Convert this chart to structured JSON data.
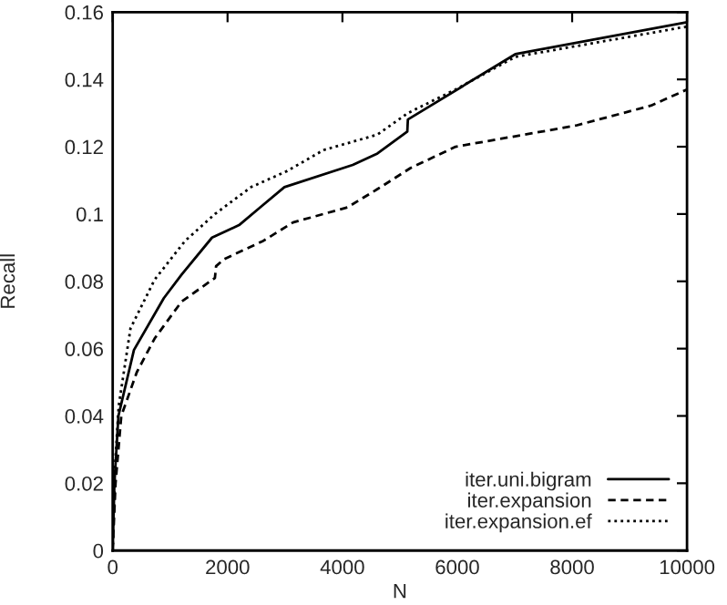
{
  "chart_data": {
    "type": "line",
    "xlabel": "N",
    "ylabel": "Recall",
    "xlim": [
      0,
      10000
    ],
    "xticks": [
      0,
      2000,
      4000,
      6000,
      8000,
      10000
    ],
    "ylim": [
      0,
      0.16
    ],
    "yticks": [
      0,
      0.02,
      0.04,
      0.06,
      0.08,
      0.1,
      0.12,
      0.14,
      0.16
    ],
    "grid": false,
    "legend": "bottom right",
    "marker": "none",
    "series": [
      {
        "name": "iter.uni.bigram",
        "color": "#000000",
        "line_style": "solid",
        "x": [
          0,
          30,
          100,
          370,
          890,
          1200,
          1730,
          2200,
          2570,
          2990,
          4180,
          4610,
          5130,
          5140,
          7010,
          10000
        ],
        "values": [
          0,
          0.02,
          0.04,
          0.0596,
          0.075,
          0.082,
          0.093,
          0.0967,
          0.102,
          0.108,
          0.1146,
          0.118,
          0.1245,
          0.1281,
          0.1475,
          0.157
        ]
      },
      {
        "name": "iter.expansion",
        "color": "#000000",
        "line_style": "dashed",
        "x": [
          0,
          50,
          150,
          420,
          730,
          1200,
          1780,
          1800,
          1940,
          2620,
          3140,
          4090,
          4610,
          5190,
          5970,
          8070,
          9370,
          10000
        ],
        "values": [
          0,
          0.02,
          0.04,
          0.053,
          0.063,
          0.074,
          0.081,
          0.0845,
          0.0866,
          0.092,
          0.0975,
          0.102,
          0.1074,
          0.1137,
          0.12,
          0.1263,
          0.1322,
          0.137
        ]
      },
      {
        "name": "iter.expansion.ef",
        "color": "#000000",
        "line_style": "dotted",
        "x": [
          0,
          40,
          105,
          310,
          730,
          1260,
          1780,
          2410,
          3040,
          3670,
          4610,
          5140,
          5970,
          7010,
          10000
        ],
        "values": [
          0,
          0.025,
          0.043,
          0.066,
          0.0805,
          0.092,
          0.1,
          0.108,
          0.1128,
          0.119,
          0.1236,
          0.13,
          0.137,
          0.1467,
          0.1557
        ]
      }
    ]
  }
}
